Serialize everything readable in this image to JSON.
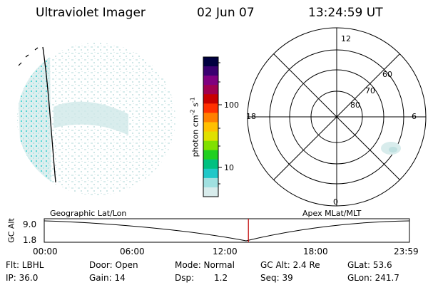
{
  "header": {
    "title": "Ultraviolet Imager",
    "date": "02 Jun 07",
    "time": "13:24:59 UT"
  },
  "colorbar": {
    "unit_label": "photon cm",
    "unit_sup1": "-2",
    "unit_mid": "s",
    "unit_sup2": "-1",
    "ticks": [
      "100",
      "10"
    ],
    "colors": [
      "#000040",
      "#3a0070",
      "#800080",
      "#a00050",
      "#c80000",
      "#ff3000",
      "#ff8000",
      "#ffc000",
      "#e0e000",
      "#80e000",
      "#20d020",
      "#00c080",
      "#20c8c8",
      "#a0e0e0",
      "#d8ecec"
    ]
  },
  "polar_plot": {
    "mlt_labels": [
      "12",
      "18",
      "6",
      "0"
    ],
    "lat_labels": [
      "60",
      "70",
      "80"
    ]
  },
  "timeline": {
    "left_title": "Geographic Lat/Lon",
    "right_title": "Apex MLat/MLT",
    "axis_label": "GC Alt",
    "y_ticks": [
      "9.0",
      "1.8"
    ],
    "x_ticks": [
      "00:00",
      "06:00",
      "12:00",
      "18:00",
      "23:59"
    ],
    "current_time_fraction": 0.559,
    "marker_color": "#c00000"
  },
  "info": {
    "row1": {
      "flt": "Flt: LBHL",
      "door": "Door: Open",
      "mode": "Mode: Normal",
      "gcalt": "GC Alt: 2.4 Re",
      "glat": "GLat:  53.6"
    },
    "row2": {
      "ip": "IP: 36.0",
      "gain": "Gain: 14",
      "dsp_label": "Dsp:",
      "dsp_value": "1.2",
      "seq": "Seq: 39",
      "glon": "GLon: 241.7"
    }
  }
}
